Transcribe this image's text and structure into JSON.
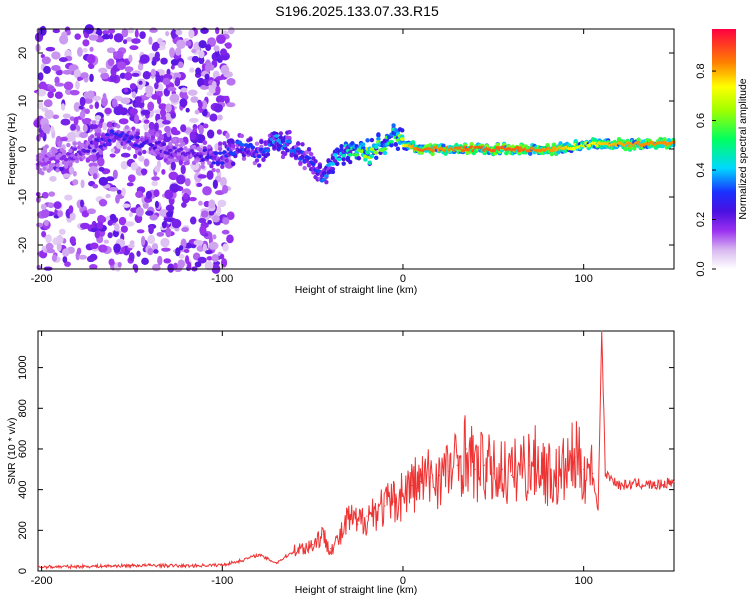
{
  "title": "S196.2025.133.07.33.R15",
  "chart_data": [
    {
      "type": "heatmap",
      "title": "S196.2025.133.07.33.R15",
      "xlabel": "Height of straight line (km)",
      "ylabel": "Frequency (Hz)",
      "xlim": [
        -202,
        150
      ],
      "ylim": [
        -25,
        25
      ],
      "xticks": [
        -200,
        -100,
        0,
        100
      ],
      "yticks": [
        -20,
        -10,
        0,
        10,
        20
      ],
      "grid": false,
      "colormap": "rainbow (white-purple-blue-cyan-green-yellow-red)",
      "colorbar": {
        "label": "Normalized spectral amplitude",
        "range": [
          0.0,
          0.97
        ],
        "ticks": [
          0.0,
          0.2,
          0.4,
          0.6,
          0.8
        ]
      },
      "ridge": {
        "description": "dominant frequency vs height",
        "x": [
          -200,
          -180,
          -160,
          -140,
          -120,
          -100,
          -90,
          -80,
          -70,
          -60,
          -50,
          -45,
          -40,
          -30,
          -20,
          -10,
          -5,
          0,
          10,
          20,
          40,
          60,
          80,
          90,
          100,
          110,
          130,
          150
        ],
        "y": [
          -2,
          -1,
          3,
          1,
          -1,
          -2,
          1,
          -1,
          2,
          0,
          -3,
          -6,
          -3,
          0,
          -1,
          1,
          3,
          1,
          0,
          0,
          0,
          0,
          0,
          0,
          1,
          1,
          1,
          1
        ],
        "amplitude": [
          0.15,
          0.2,
          0.3,
          0.25,
          0.2,
          0.3,
          0.35,
          0.3,
          0.4,
          0.35,
          0.3,
          0.35,
          0.4,
          0.5,
          0.7,
          0.6,
          0.5,
          0.75,
          0.9,
          0.85,
          0.9,
          0.9,
          0.85,
          0.8,
          0.7,
          0.8,
          0.85,
          0.85
        ]
      }
    },
    {
      "type": "line",
      "xlabel": "Height of straight line (km)",
      "ylabel": "SNR (10 * v/v)",
      "xlim": [
        -202,
        150
      ],
      "ylim": [
        0,
        1180
      ],
      "xticks": [
        -200,
        -100,
        0,
        100
      ],
      "yticks": [
        0,
        200,
        400,
        600,
        800,
        1000
      ],
      "grid": false,
      "color": "#ee3333",
      "series": [
        {
          "x": [
            -200,
            -180,
            -160,
            -140,
            -120,
            -100,
            -90,
            -80,
            -75,
            -70,
            -65,
            -60,
            -50,
            -45,
            -40,
            -35,
            -30,
            -25,
            -20,
            -15,
            -10,
            -5,
            0,
            5,
            10,
            15,
            20,
            25,
            30,
            35,
            40,
            45,
            50,
            55,
            60,
            65,
            70,
            75,
            80,
            85,
            90,
            95,
            98,
            100,
            105,
            108,
            110,
            112,
            120,
            130,
            140,
            150
          ],
          "y": [
            20,
            22,
            25,
            28,
            25,
            30,
            50,
            80,
            60,
            40,
            70,
            100,
            130,
            180,
            110,
            160,
            260,
            230,
            270,
            300,
            320,
            340,
            380,
            420,
            440,
            460,
            470,
            490,
            520,
            600,
            500,
            520,
            480,
            500,
            470,
            520,
            520,
            540,
            480,
            460,
            500,
            560,
            520,
            500,
            480,
            300,
            1180,
            480,
            420,
            430,
            420,
            440
          ]
        }
      ]
    }
  ]
}
